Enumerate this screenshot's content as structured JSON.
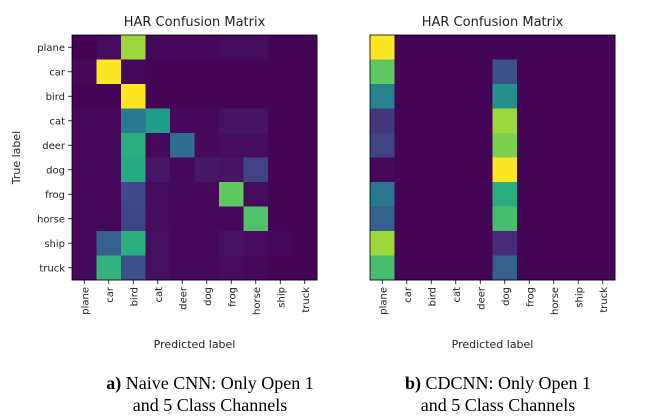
{
  "labels": [
    "plane",
    "car",
    "bird",
    "cat",
    "deer",
    "dog",
    "frog",
    "horse",
    "ship",
    "truck"
  ],
  "chart_data": [
    {
      "type": "heatmap",
      "title": "HAR Confusion Matrix",
      "xlabel": "Predicted label",
      "ylabel": "True label",
      "colormap": "viridis",
      "value_range": [
        0,
        1
      ],
      "rows": [
        "plane",
        "car",
        "bird",
        "cat",
        "deer",
        "dog",
        "frog",
        "horse",
        "ship",
        "truck"
      ],
      "columns": [
        "plane",
        "car",
        "bird",
        "cat",
        "deer",
        "dog",
        "frog",
        "horse",
        "ship",
        "truck"
      ],
      "values": [
        [
          0.0,
          0.03,
          0.85,
          0.02,
          0.02,
          0.02,
          0.03,
          0.03,
          0.01,
          0.01
        ],
        [
          0.02,
          1.0,
          0.02,
          0.01,
          0.01,
          0.01,
          0.01,
          0.01,
          0.01,
          0.01
        ],
        [
          0.01,
          0.01,
          1.0,
          0.01,
          0.01,
          0.01,
          0.01,
          0.01,
          0.01,
          0.01
        ],
        [
          0.02,
          0.02,
          0.4,
          0.55,
          0.02,
          0.02,
          0.05,
          0.05,
          0.01,
          0.01
        ],
        [
          0.02,
          0.02,
          0.62,
          0.02,
          0.35,
          0.02,
          0.03,
          0.03,
          0.01,
          0.01
        ],
        [
          0.02,
          0.02,
          0.6,
          0.06,
          0.02,
          0.06,
          0.05,
          0.2,
          0.01,
          0.01
        ],
        [
          0.02,
          0.02,
          0.22,
          0.03,
          0.02,
          0.02,
          0.75,
          0.03,
          0.01,
          0.01
        ],
        [
          0.02,
          0.02,
          0.2,
          0.03,
          0.02,
          0.02,
          0.02,
          0.72,
          0.01,
          0.01
        ],
        [
          0.02,
          0.3,
          0.62,
          0.04,
          0.02,
          0.02,
          0.05,
          0.03,
          0.02,
          0.01
        ],
        [
          0.02,
          0.65,
          0.25,
          0.04,
          0.02,
          0.02,
          0.03,
          0.02,
          0.01,
          0.01
        ]
      ]
    },
    {
      "type": "heatmap",
      "title": "HAR Confusion Matrix",
      "xlabel": "Predicted label",
      "ylabel": "",
      "colormap": "viridis",
      "value_range": [
        0,
        1
      ],
      "rows": [
        "plane",
        "car",
        "bird",
        "cat",
        "deer",
        "dog",
        "frog",
        "horse",
        "ship",
        "truck"
      ],
      "columns": [
        "plane",
        "car",
        "bird",
        "cat",
        "deer",
        "dog",
        "frog",
        "horse",
        "ship",
        "truck"
      ],
      "values": [
        [
          1.0,
          0.01,
          0.01,
          0.01,
          0.01,
          0.01,
          0.01,
          0.01,
          0.01,
          0.01
        ],
        [
          0.75,
          0.01,
          0.01,
          0.01,
          0.01,
          0.25,
          0.01,
          0.01,
          0.01,
          0.01
        ],
        [
          0.45,
          0.01,
          0.01,
          0.01,
          0.01,
          0.5,
          0.01,
          0.01,
          0.01,
          0.01
        ],
        [
          0.15,
          0.01,
          0.01,
          0.01,
          0.01,
          0.85,
          0.01,
          0.01,
          0.01,
          0.01
        ],
        [
          0.2,
          0.01,
          0.01,
          0.01,
          0.01,
          0.8,
          0.01,
          0.01,
          0.01,
          0.01
        ],
        [
          0.02,
          0.01,
          0.01,
          0.01,
          0.01,
          1.0,
          0.01,
          0.01,
          0.01,
          0.01
        ],
        [
          0.4,
          0.01,
          0.01,
          0.01,
          0.01,
          0.62,
          0.01,
          0.01,
          0.01,
          0.01
        ],
        [
          0.3,
          0.01,
          0.01,
          0.01,
          0.01,
          0.7,
          0.01,
          0.01,
          0.01,
          0.01
        ],
        [
          0.85,
          0.01,
          0.01,
          0.01,
          0.01,
          0.12,
          0.01,
          0.01,
          0.01,
          0.01
        ],
        [
          0.7,
          0.01,
          0.01,
          0.01,
          0.01,
          0.3,
          0.01,
          0.01,
          0.01,
          0.01
        ]
      ]
    }
  ],
  "captions": [
    {
      "tag": "a)",
      "text": "Naive CNN: Only Open 1",
      "line2": "and 5 Class Channels"
    },
    {
      "tag": "b)",
      "text": "CDCNN: Only Open 1",
      "line2": "and 5 Class Channels"
    }
  ]
}
